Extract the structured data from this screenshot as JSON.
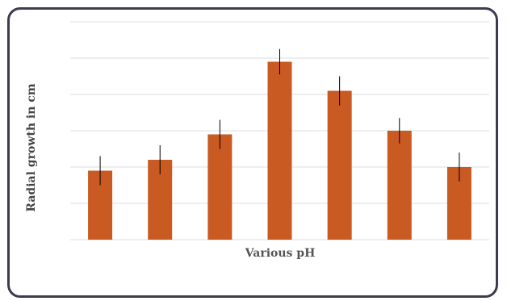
{
  "chart_data": {
    "type": "bar",
    "xlabel": "Various pH",
    "ylabel": "Radial growth in cm",
    "categories": [
      "",
      "",
      "",
      "",
      "",
      "",
      ""
    ],
    "values": [
      1.9,
      2.2,
      2.9,
      4.9,
      4.1,
      3.0,
      2.0
    ],
    "errors": [
      0.4,
      0.4,
      0.4,
      0.35,
      0.4,
      0.35,
      0.4
    ],
    "ylim": [
      0,
      6
    ],
    "grid": true,
    "bar_color": "#c95a22",
    "error_color": "#000000",
    "grid_color": "#dcdcdc"
  }
}
